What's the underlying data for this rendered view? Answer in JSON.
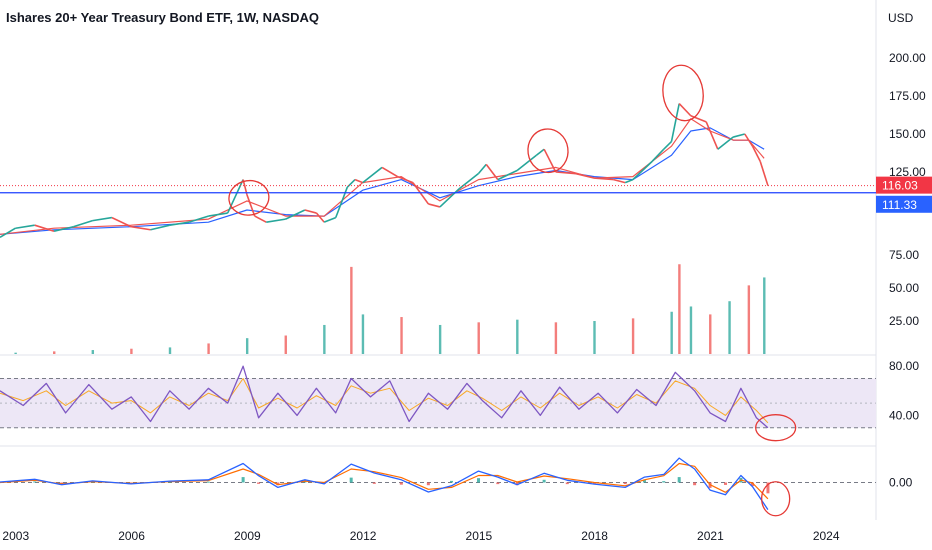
{
  "chart_data": {
    "type": "line",
    "title": "Ishares 20+ Year Treasury Bond ETF, 1W, NASDAQ",
    "currency": "USD",
    "colors": {
      "price_up": "#26a69a",
      "price_down": "#ef5350",
      "ma_fast": "#ef5350",
      "ma_slow": "#2962ff",
      "rsi_line": "#7e57c2",
      "rsi_signal": "#f9a825",
      "rsi_band": "#ede7f6",
      "macd_line": "#2962ff",
      "signal_line": "#ff6d00",
      "annotation": "#e53935",
      "last_price": "#f23645",
      "level_line": "#1e40ff"
    },
    "x_axis": {
      "labels": [
        "2003",
        "2006",
        "2009",
        "2012",
        "2015",
        "2018",
        "2021",
        "2024"
      ],
      "range": [
        2002.6,
        2025.3
      ]
    },
    "price_panel": {
      "ticks": [
        "200.00",
        "175.00",
        "150.00",
        "125.00",
        "75.00",
        "50.00",
        "25.00"
      ],
      "tick_values": [
        200,
        175,
        150,
        125,
        75,
        50,
        25
      ],
      "last_price": {
        "label": "116.03",
        "value": 116.03
      },
      "horizontal_line": {
        "label": "111.33",
        "value": 111.33
      },
      "series": {
        "name": "",
        "x": [
          2002.6,
          2003.0,
          2003.5,
          2004.0,
          2004.5,
          2005.0,
          2005.5,
          2006.0,
          2006.5,
          2007.0,
          2007.5,
          2008.0,
          2008.5,
          2008.9,
          2009.0,
          2009.2,
          2009.5,
          2010.0,
          2010.5,
          2010.8,
          2011.0,
          2011.3,
          2011.6,
          2011.8,
          2012.0,
          2012.5,
          2012.9,
          2013.3,
          2013.7,
          2014.0,
          2014.5,
          2015.0,
          2015.2,
          2015.5,
          2016.0,
          2016.5,
          2016.7,
          2017.0,
          2017.5,
          2018.0,
          2018.5,
          2018.8,
          2019.0,
          2019.5,
          2019.8,
          2020.0,
          2020.2,
          2020.5,
          2020.9,
          2021.2,
          2021.6,
          2021.9,
          2022.1,
          2022.3,
          2022.5
        ],
        "y": [
          82,
          88,
          90,
          86,
          89,
          93,
          95,
          89,
          87,
          90,
          92,
          96,
          98,
          120,
          110,
          96,
          92,
          94,
          100,
          98,
          92,
          95,
          115,
          120,
          118,
          128,
          122,
          118,
          104,
          102,
          114,
          124,
          130,
          120,
          126,
          136,
          140,
          125,
          124,
          121,
          120,
          118,
          120,
          132,
          140,
          145,
          170,
          162,
          158,
          140,
          148,
          150,
          142,
          132,
          116
        ]
      },
      "ma_fast": {
        "x": [
          2002.6,
          2004.0,
          2006.0,
          2008.0,
          2009.0,
          2010.0,
          2011.0,
          2012.0,
          2013.0,
          2014.0,
          2015.0,
          2016.0,
          2017.0,
          2018.0,
          2019.0,
          2020.0,
          2020.5,
          2021.0,
          2021.6,
          2022.0,
          2022.4
        ],
        "y": [
          84,
          88,
          90,
          94,
          106,
          96,
          96,
          118,
          122,
          106,
          120,
          124,
          128,
          121,
          122,
          142,
          160,
          152,
          146,
          146,
          134
        ]
      },
      "ma_slow": {
        "x": [
          2002.6,
          2004.0,
          2006.0,
          2008.0,
          2009.0,
          2010.0,
          2011.0,
          2012.0,
          2013.0,
          2014.0,
          2015.0,
          2016.0,
          2017.0,
          2018.0,
          2019.0,
          2020.0,
          2020.5,
          2021.0,
          2021.6,
          2022.0,
          2022.4
        ],
        "y": [
          84,
          87,
          89,
          92,
          100,
          97,
          96,
          113,
          120,
          108,
          116,
          122,
          126,
          122,
          120,
          136,
          152,
          154,
          146,
          146,
          140
        ]
      }
    },
    "volume_panel": {
      "x": [
        2003.0,
        2004.0,
        2005.0,
        2006.0,
        2007.0,
        2008.0,
        2009.0,
        2010.0,
        2011.0,
        2011.7,
        2012.0,
        2013.0,
        2014.0,
        2015.0,
        2016.0,
        2017.0,
        2018.0,
        2019.0,
        2020.0,
        2020.2,
        2020.5,
        2021.0,
        2021.5,
        2022.0,
        2022.4
      ],
      "values": [
        1,
        2,
        3,
        4,
        5,
        8,
        12,
        14,
        22,
        66,
        30,
        28,
        22,
        24,
        26,
        24,
        25,
        27,
        32,
        68,
        36,
        30,
        40,
        52,
        58
      ],
      "ylim": [
        0,
        75
      ]
    },
    "rsi_panel": {
      "ticks": [
        "80.00",
        "40.00"
      ],
      "tick_values": [
        80,
        40
      ],
      "band": [
        30,
        70
      ],
      "x": [
        2002.6,
        2003.2,
        2003.8,
        2004.3,
        2004.9,
        2005.5,
        2006.0,
        2006.5,
        2007.0,
        2007.5,
        2008.0,
        2008.5,
        2008.9,
        2009.3,
        2009.8,
        2010.3,
        2010.8,
        2011.3,
        2011.7,
        2012.2,
        2012.7,
        2013.2,
        2013.7,
        2014.2,
        2014.7,
        2015.1,
        2015.6,
        2016.1,
        2016.6,
        2017.1,
        2017.6,
        2018.1,
        2018.6,
        2019.1,
        2019.6,
        2020.1,
        2020.6,
        2021.0,
        2021.4,
        2021.8,
        2022.2,
        2022.5
      ],
      "y": [
        60,
        48,
        66,
        42,
        65,
        45,
        55,
        35,
        60,
        45,
        62,
        50,
        80,
        38,
        58,
        40,
        62,
        42,
        70,
        55,
        68,
        35,
        58,
        45,
        66,
        52,
        38,
        60,
        40,
        63,
        45,
        58,
        42,
        61,
        48,
        75,
        60,
        42,
        35,
        62,
        38,
        30
      ],
      "signal_y": [
        58,
        52,
        60,
        48,
        60,
        50,
        52,
        42,
        55,
        48,
        58,
        52,
        70,
        46,
        54,
        46,
        56,
        48,
        64,
        58,
        62,
        44,
        54,
        48,
        60,
        54,
        44,
        55,
        46,
        58,
        48,
        55,
        46,
        57,
        50,
        68,
        62,
        48,
        40,
        55,
        44,
        34
      ],
      "ylim": [
        20,
        85
      ]
    },
    "macd_panel": {
      "ticks": [
        "0.00"
      ],
      "tick_values": [
        0
      ],
      "x": [
        2002.6,
        2003.5,
        2004.2,
        2005.0,
        2006.0,
        2007.0,
        2008.0,
        2008.9,
        2009.3,
        2009.8,
        2010.5,
        2011.0,
        2011.7,
        2012.3,
        2013.0,
        2013.7,
        2014.3,
        2015.0,
        2015.5,
        2016.0,
        2016.7,
        2017.3,
        2018.0,
        2018.8,
        2019.3,
        2019.8,
        2020.2,
        2020.6,
        2021.0,
        2021.4,
        2021.8,
        2022.1,
        2022.5
      ],
      "macd": [
        0.2,
        1.2,
        -0.8,
        0.6,
        -0.5,
        0.5,
        1.0,
        7.0,
        2.5,
        -1.8,
        1.0,
        -0.5,
        6.8,
        3.5,
        1.0,
        -3.5,
        -1.2,
        4.2,
        2.0,
        -0.8,
        3.4,
        0.8,
        -0.6,
        -1.8,
        2.0,
        3.0,
        9.0,
        5.0,
        -2.8,
        -4.5,
        2.6,
        -1.5,
        -10.0
      ],
      "signal": [
        0.0,
        0.8,
        -0.5,
        0.3,
        -0.3,
        0.3,
        0.7,
        5.0,
        3.0,
        -0.8,
        0.5,
        0.0,
        5.0,
        4.0,
        1.8,
        -2.5,
        -1.8,
        2.6,
        2.6,
        0.2,
        2.4,
        1.4,
        0.0,
        -1.2,
        1.0,
        2.5,
        7.0,
        6.0,
        -0.8,
        -3.6,
        0.9,
        -0.2,
        -6.0
      ],
      "ylim": [
        -12,
        12
      ]
    }
  }
}
